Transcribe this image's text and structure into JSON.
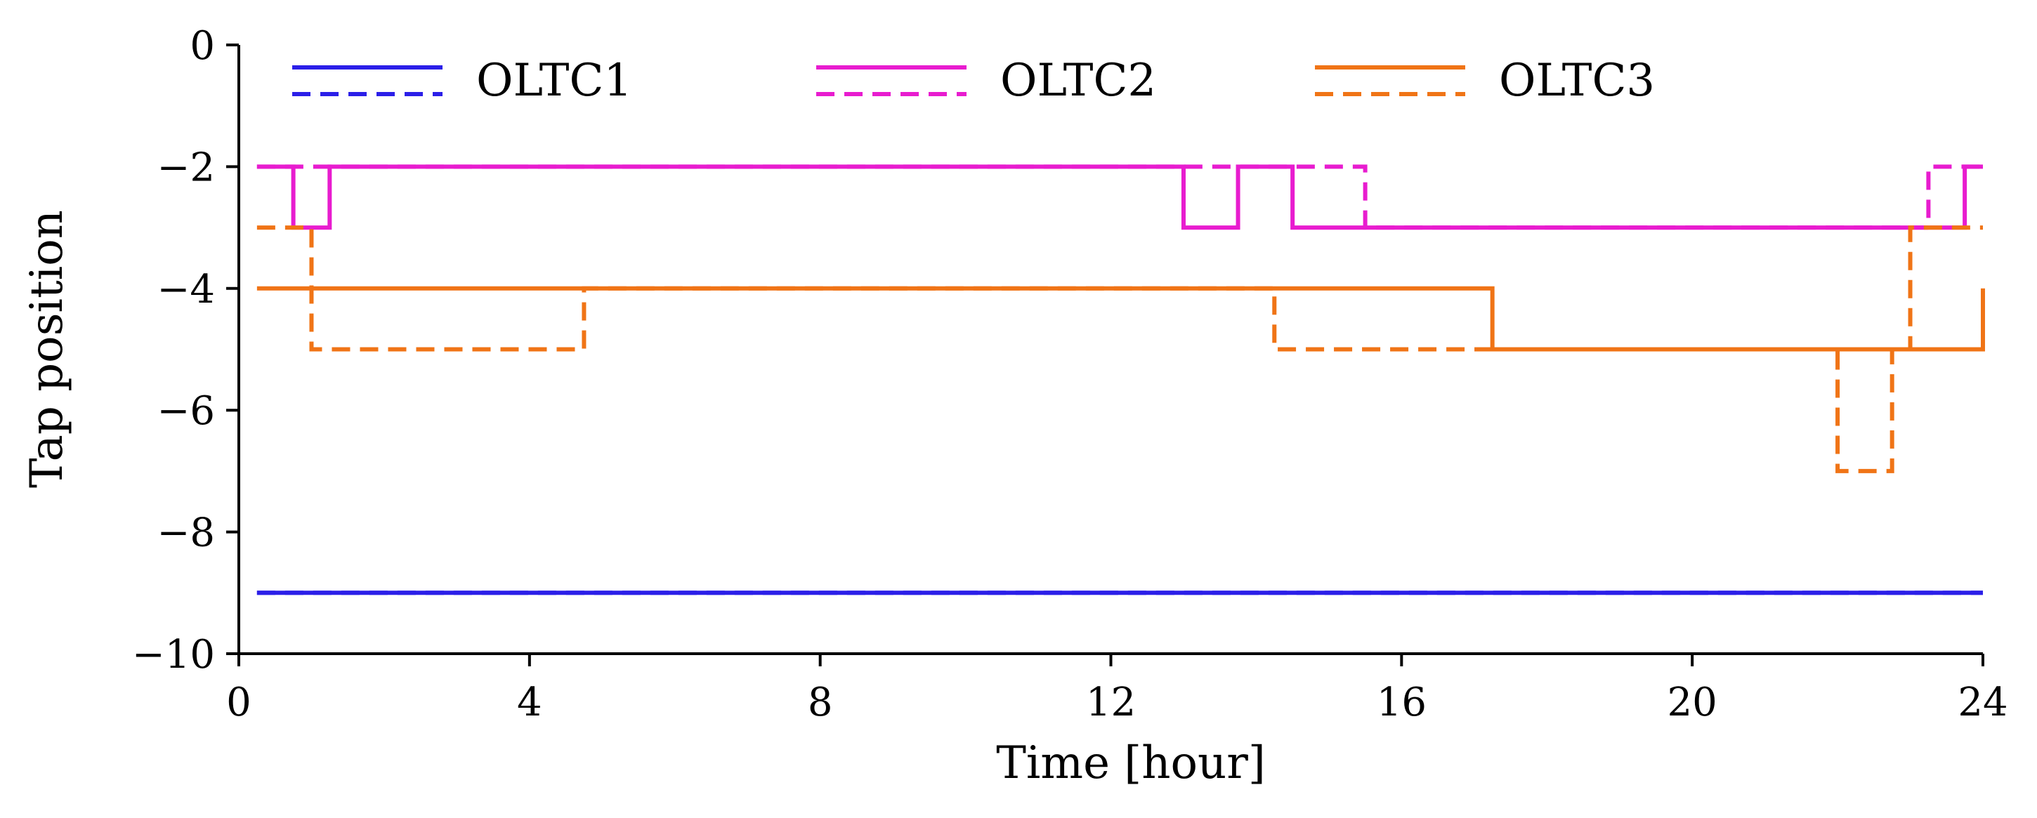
{
  "chart_data": {
    "type": "line",
    "xlabel": "Time [hour]",
    "ylabel": "Tap position",
    "xlim": [
      0,
      24
    ],
    "ylim": [
      -10,
      0
    ],
    "xticks": [
      0,
      4,
      8,
      12,
      16,
      20,
      24
    ],
    "yticks": [
      0,
      -2,
      -4,
      -6,
      -8,
      -10
    ],
    "xtick_labels": [
      "0",
      "4",
      "8",
      "12",
      "16",
      "20",
      "24"
    ],
    "ytick_labels": [
      "0",
      "−2",
      "−4",
      "−6",
      "−8",
      "−10"
    ],
    "legend": {
      "placement": "top",
      "entries": [
        "OLTC1",
        "OLTC2",
        "OLTC3"
      ]
    },
    "grid": false,
    "series": [
      {
        "legend": "OLTC1",
        "style": "solid",
        "color": "#2b1fe8",
        "step": "post",
        "x": [
          0.25,
          24
        ],
        "y": [
          -9,
          -9
        ]
      },
      {
        "legend": "OLTC1",
        "style": "dashed",
        "color": "#2b1fe8",
        "step": "post",
        "x": [
          0.25,
          24
        ],
        "y": [
          -9,
          -9
        ]
      },
      {
        "legend": "OLTC2",
        "style": "solid",
        "color": "#e81ccf",
        "step": "post",
        "x": [
          0.25,
          0.75,
          1.25,
          13.0,
          13.75,
          14.5,
          23.75,
          24
        ],
        "y": [
          -2,
          -3,
          -2,
          -3,
          -2,
          -3,
          -2,
          -2
        ]
      },
      {
        "legend": "OLTC2",
        "style": "dashed",
        "color": "#e81ccf",
        "step": "post",
        "x": [
          0.25,
          15.5,
          23.25,
          24
        ],
        "y": [
          -2,
          -3,
          -2,
          -2
        ]
      },
      {
        "legend": "OLTC3",
        "style": "solid",
        "color": "#f07416",
        "step": "post",
        "x": [
          0.25,
          17.25,
          24,
          24
        ],
        "y": [
          -4,
          -5,
          -4,
          -4
        ]
      },
      {
        "legend": "OLTC3",
        "style": "dashed",
        "color": "#f07416",
        "step": "post",
        "x": [
          0.25,
          1.0,
          4.75,
          14.25,
          22.0,
          22.75,
          23.0,
          24
        ],
        "y": [
          -3,
          -5,
          -4,
          -5,
          -7,
          -5,
          -3,
          -3
        ]
      }
    ]
  }
}
